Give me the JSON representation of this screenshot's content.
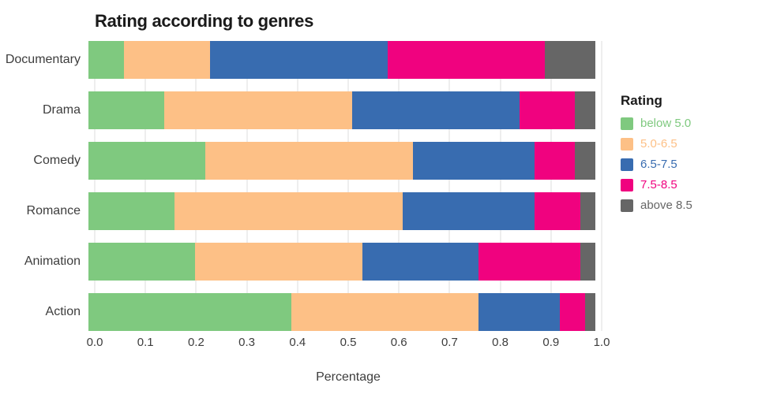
{
  "chart_data": {
    "type": "bar",
    "orientation": "horizontal",
    "stacked": true,
    "title": "Rating according to genres",
    "xlabel": "Percentage",
    "ylabel": "",
    "grid": true,
    "legend_position": "right",
    "legend_title": "Rating",
    "xlim": [
      0.0,
      1.0
    ],
    "xticks": [
      0.0,
      0.1,
      0.2,
      0.3,
      0.4,
      0.5,
      0.6,
      0.7,
      0.8,
      0.9,
      1.0
    ],
    "categories": [
      "Documentary",
      "Drama",
      "Comedy",
      "Romance",
      "Animation",
      "Action"
    ],
    "series": [
      {
        "name": "below 5.0",
        "color": "#7fc97f",
        "values": [
          0.07,
          0.15,
          0.23,
          0.17,
          0.21,
          0.4
        ]
      },
      {
        "name": "5.0-6.5",
        "color": "#fdc086",
        "values": [
          0.17,
          0.37,
          0.41,
          0.45,
          0.33,
          0.37
        ]
      },
      {
        "name": "6.5-7.5",
        "color": "#386cb0",
        "values": [
          0.35,
          0.33,
          0.24,
          0.26,
          0.23,
          0.16
        ]
      },
      {
        "name": "7.5-8.5",
        "color": "#f0027f",
        "values": [
          0.31,
          0.11,
          0.08,
          0.09,
          0.2,
          0.05
        ]
      },
      {
        "name": "above 8.5",
        "color": "#666666",
        "values": [
          0.1,
          0.04,
          0.04,
          0.03,
          0.03,
          0.02
        ]
      }
    ]
  }
}
